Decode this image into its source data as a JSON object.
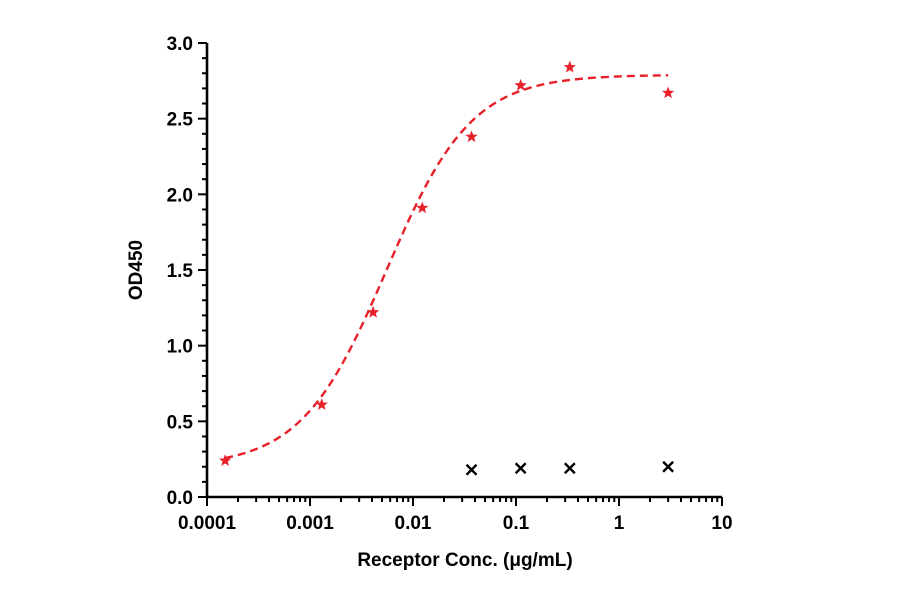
{
  "chart_data": {
    "type": "scatter",
    "title": "",
    "xlabel": "Receptor Conc. (μg/mL)",
    "ylabel": "OD450",
    "x_scale": "log",
    "xlim": [
      0.0001,
      10
    ],
    "ylim": [
      0,
      3.0
    ],
    "x_ticks": [
      0.0001,
      0.001,
      0.01,
      0.1,
      1,
      10
    ],
    "x_tick_labels": [
      "0.0001",
      "0.001",
      "0.01",
      "0.1",
      "1",
      "10"
    ],
    "y_ticks": [
      0,
      0.5,
      1.0,
      1.5,
      2.0,
      2.5,
      3.0
    ],
    "y_tick_labels": [
      "0.0",
      "0.5",
      "1.0",
      "1.5",
      "2.0",
      "2.5",
      "3.0"
    ],
    "grid": false,
    "legend": "none",
    "series": [
      {
        "marker": "star",
        "color": "#e8202a",
        "x": [
          0.00015,
          0.0013,
          0.0041,
          0.0123,
          0.037,
          0.111,
          0.333,
          3.0
        ],
        "y": [
          0.24,
          0.61,
          1.22,
          1.91,
          2.38,
          2.72,
          2.84,
          2.67
        ],
        "fit": {
          "model": "4PL",
          "bottom": 0.2,
          "top": 2.79,
          "ec50": 0.0055,
          "hill": 1.05,
          "x_range": [
            0.00015,
            3.0
          ],
          "line_style": "dashed"
        }
      },
      {
        "marker": "x",
        "color": "#000000",
        "x": [
          0.037,
          0.111,
          0.333,
          3.0
        ],
        "y": [
          0.18,
          0.19,
          0.19,
          0.2
        ]
      }
    ]
  }
}
